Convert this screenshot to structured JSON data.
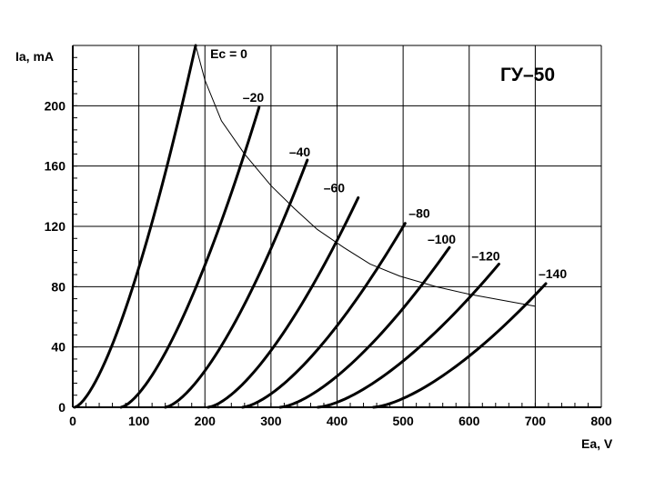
{
  "chart_data": {
    "type": "line",
    "title": "ГУ–50",
    "xlabel": "Ea, V",
    "ylabel": "Ia, mA",
    "xlim": [
      0,
      800
    ],
    "ylim": [
      0,
      240
    ],
    "x_ticks": [
      {
        "value": 0,
        "label": "0"
      },
      {
        "value": 100,
        "label": "100"
      },
      {
        "value": 200,
        "label": "200"
      },
      {
        "value": 300,
        "label": "300"
      },
      {
        "value": 400,
        "label": "400"
      },
      {
        "value": 500,
        "label": "500"
      },
      {
        "value": 600,
        "label": "600"
      },
      {
        "value": 700,
        "label": "700"
      },
      {
        "value": 800,
        "label": "800"
      }
    ],
    "y_ticks": [
      {
        "value": 0,
        "label": "0"
      },
      {
        "value": 40,
        "label": "40"
      },
      {
        "value": 80,
        "label": "80"
      },
      {
        "value": 120,
        "label": "120"
      },
      {
        "value": 160,
        "label": "160"
      },
      {
        "value": 200,
        "label": "200"
      }
    ],
    "grid": true,
    "series": [
      {
        "name": "Ec = 0",
        "x_start": 3,
        "x_end": 186,
        "y_end": 240,
        "exponent": 1.5
      },
      {
        "name": "–20",
        "x_start": 73,
        "x_end": 282,
        "y_end": 199,
        "exponent": 1.5
      },
      {
        "name": "–40",
        "x_start": 140,
        "x_end": 355,
        "y_end": 164,
        "exponent": 1.5
      },
      {
        "name": "–60",
        "x_start": 205,
        "x_end": 432,
        "y_end": 139,
        "exponent": 1.5
      },
      {
        "name": "–80",
        "x_start": 257,
        "x_end": 503,
        "y_end": 122,
        "exponent": 1.5
      },
      {
        "name": "–100",
        "x_start": 314,
        "x_end": 570,
        "y_end": 106,
        "exponent": 1.5
      },
      {
        "name": "–120",
        "x_start": 371,
        "x_end": 645,
        "y_end": 95,
        "exponent": 1.5
      },
      {
        "name": "–140",
        "x_start": 455,
        "x_end": 716,
        "y_end": 82,
        "exponent": 1.5
      }
    ],
    "limit_curve": {
      "x": [
        186,
        200,
        225,
        260,
        300,
        335,
        370,
        410,
        450,
        495,
        550,
        600,
        650,
        700
      ],
      "y": [
        240,
        217,
        190,
        168,
        147,
        132,
        118,
        106,
        95,
        87,
        80,
        75,
        71,
        67
      ]
    }
  }
}
